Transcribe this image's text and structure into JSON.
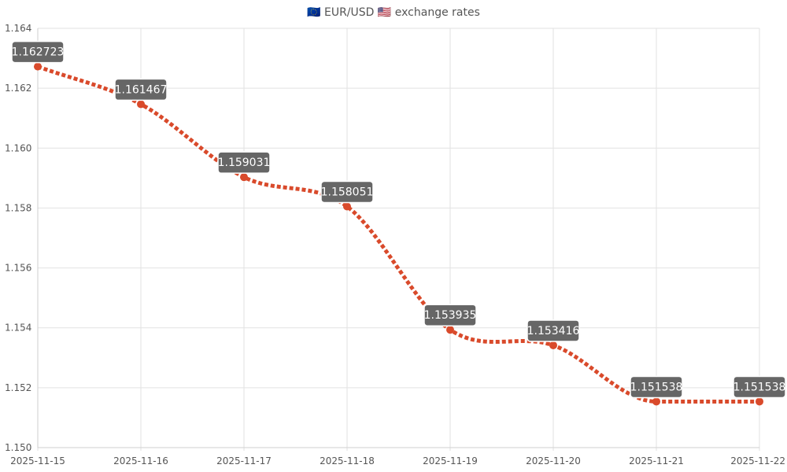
{
  "chart_data": {
    "type": "line",
    "title": "🇪🇺 EUR/USD 🇺🇸 exchange rates",
    "xlabel": "",
    "ylabel": "",
    "x": [
      "2025-11-15",
      "2025-11-16",
      "2025-11-17",
      "2025-11-18",
      "2025-11-19",
      "2025-11-20",
      "2025-11-21",
      "2025-11-22"
    ],
    "series": [
      {
        "values": [
          1.162723,
          1.161467,
          1.159031,
          1.158051,
          1.153935,
          1.153416,
          1.151538,
          1.151538
        ],
        "data_labels": [
          "1.162723",
          "1.161467",
          "1.159031",
          "1.158051",
          "1.153935",
          "1.153416",
          "1.151538",
          "1.151538"
        ],
        "color": "#d94a2b"
      }
    ],
    "ylim": [
      1.15,
      1.164
    ],
    "yticks": [
      "1.150",
      "1.152",
      "1.154",
      "1.156",
      "1.158",
      "1.160",
      "1.162",
      "1.164"
    ],
    "grid": true,
    "legend": "none"
  }
}
